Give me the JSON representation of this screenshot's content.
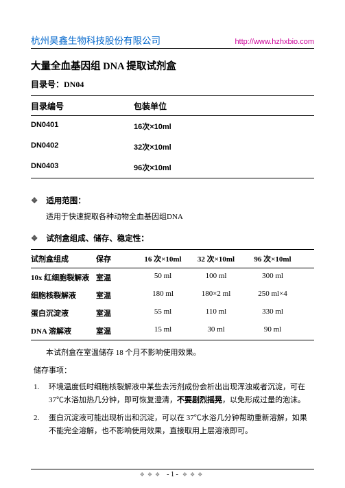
{
  "header": {
    "company": "杭州昊鑫生物科技股份有限公司",
    "url": "http://www.hzhxbio.com"
  },
  "title": "大量全血基因组 DNA 提取试剂盒",
  "catalog_label": "目录号：DN04",
  "table1": {
    "headers": {
      "c1": "目录编号",
      "c2": "包装单位"
    },
    "rows": [
      {
        "c1": "DN0401",
        "c2": "16次×10ml"
      },
      {
        "c1": "DN0402",
        "c2": "32次×10ml"
      },
      {
        "c1": "DN0403",
        "c2": "96次×10ml"
      }
    ]
  },
  "section1": {
    "head": "适用范围：",
    "body": "适用于快速提取各种动物全血基因组DNA"
  },
  "section2": {
    "head": "试剂盒组成、储存、稳定性："
  },
  "table2": {
    "headers": {
      "c1": "试剂盒组成",
      "c2": "保存",
      "c3": "16 次×10ml",
      "c4": "32 次×10ml",
      "c5": "96 次×10ml"
    },
    "rows": [
      {
        "c1": "10x 红细胞裂解液",
        "c2": "室温",
        "c3": "50 ml",
        "c4": "100 ml",
        "c5": "300 ml"
      },
      {
        "c1": "细胞核裂解液",
        "c2": "室温",
        "c3": "180 ml",
        "c4": "180×2 ml",
        "c5": "250 ml×4"
      },
      {
        "c1": "蛋白沉淀液",
        "c2": "室温",
        "c3": "55 ml",
        "c4": "110 ml",
        "c5": "330 ml"
      },
      {
        "c1": "DNA 溶解液",
        "c2": "室温",
        "c3": "15 ml",
        "c4": "30 ml",
        "c5": "90 ml"
      }
    ]
  },
  "note": "本试剂盒在室温储存 18 个月不影响使用效果。",
  "storage_h": "储存事项：",
  "storage_items": [
    {
      "num": "1.",
      "pre": "环境温度低时细胞核裂解液中某些去污剂成份会析出出现浑浊或者沉淀，可在37℃水浴加热几分钟，即可恢复澄清，",
      "bold": "不要剧烈摇晃",
      "post": "，以免形成过量的泡沫。"
    },
    {
      "num": "2.",
      "pre": "蛋白沉淀液可能出现析出和沉淀，可以在 37℃水浴几分钟帮助重新溶解，如果不能完全溶解，也不影响使用效果，直接取用上层溶液即可。",
      "bold": "",
      "post": ""
    }
  ],
  "footer": {
    "page": "- 1 -"
  }
}
